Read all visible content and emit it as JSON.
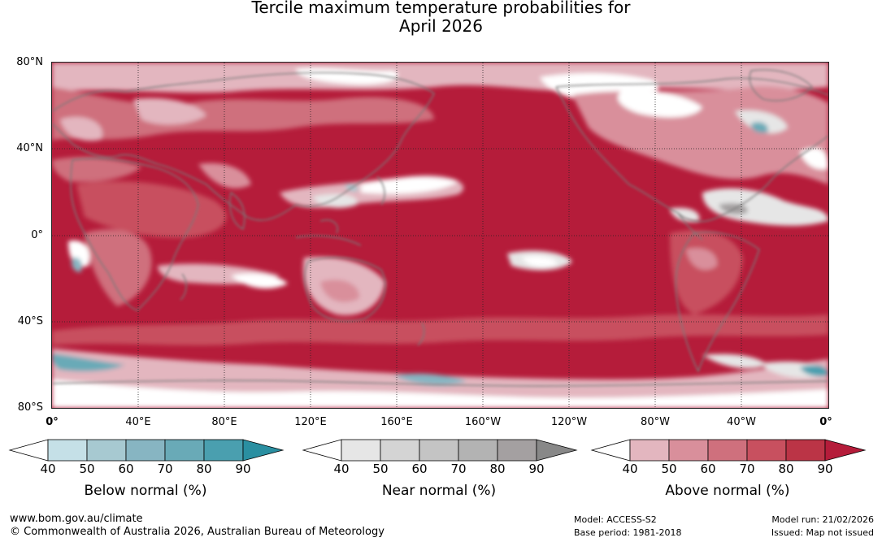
{
  "title": {
    "line1": "Tercile maximum temperature probabilities for",
    "line2": "April 2026"
  },
  "axes": {
    "lat_labels": [
      "80°N",
      "40°N",
      "0°",
      "40°S",
      "80°S"
    ],
    "lon_labels": [
      "0°",
      "40°E",
      "80°E",
      "120°E",
      "160°E",
      "160°W",
      "120°W",
      "80°W",
      "40°W",
      "0°"
    ]
  },
  "legends": [
    {
      "title": "Below normal (%)",
      "ticks": [
        "40",
        "50",
        "60",
        "70",
        "80",
        "90"
      ],
      "colors": [
        "#ffffff",
        "#c5e0e7",
        "#a7c9d1",
        "#87b5c2",
        "#69aab7",
        "#4a9faf",
        "#2a8fa1"
      ]
    },
    {
      "title": "Near normal (%)",
      "ticks": [
        "40",
        "50",
        "60",
        "70",
        "80",
        "90"
      ],
      "colors": [
        "#ffffff",
        "#e6e6e6",
        "#d4d4d4",
        "#c4c4c4",
        "#b3b3b3",
        "#a4a0a1",
        "#888888"
      ]
    },
    {
      "title": "Above normal (%)",
      "ticks": [
        "40",
        "50",
        "60",
        "70",
        "80",
        "90"
      ],
      "colors": [
        "#ffffff",
        "#e3b6bf",
        "#d98f9b",
        "#cf707d",
        "#c8505f",
        "#bb3446",
        "#b51c3a"
      ]
    }
  ],
  "footer": {
    "website": "www.bom.gov.au/climate",
    "copyright": "© Commonwealth of Australia 2026, Australian Bureau of Meteorology",
    "model": "Model: ACCESS-S2",
    "base_period": "Base period: 1981-2018",
    "model_run": "Model run: 21/02/2026",
    "issued": "Issued: Map not issued"
  },
  "map_colors": {
    "ocean_dominant": "#b51c3a",
    "above_mid": "#cf707d",
    "above_light": "#e3b6bf",
    "near_light": "#e6e6e6",
    "below_mid": "#69aab7",
    "coastline": "#7a7a7a"
  }
}
